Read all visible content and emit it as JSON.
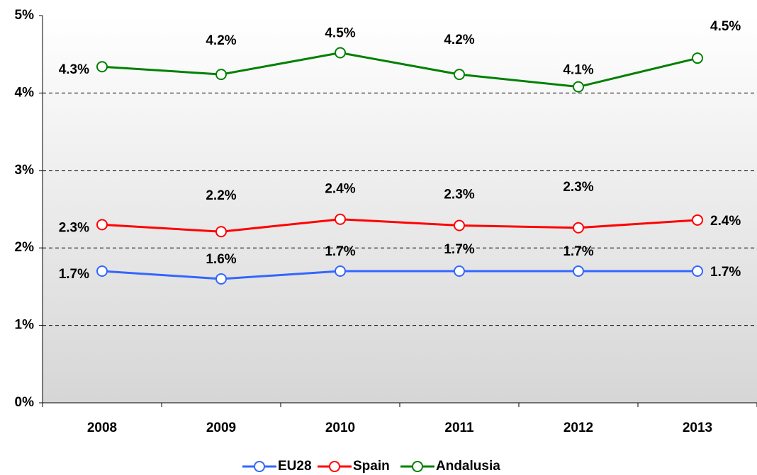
{
  "chart_data": {
    "type": "line",
    "categories": [
      "2008",
      "2009",
      "2010",
      "2011",
      "2012",
      "2013"
    ],
    "series": [
      {
        "name": "EU28",
        "color": "#3366ff",
        "values": [
          1.7,
          1.6,
          1.7,
          1.7,
          1.7,
          1.7
        ],
        "value_labels": [
          "1.7%",
          "1.6%",
          "1.7%",
          "1.7%",
          "1.7%",
          "1.7%"
        ]
      },
      {
        "name": "Spain",
        "color": "#ff0000",
        "values": [
          2.3,
          2.21,
          2.37,
          2.29,
          2.26,
          2.36
        ],
        "value_labels": [
          "2.3%",
          "2.2%",
          "2.4%",
          "2.3%",
          "2.3%",
          "2.4%"
        ]
      },
      {
        "name": "Andalusia",
        "color": "#008000",
        "values": [
          4.34,
          4.24,
          4.52,
          4.24,
          4.08,
          4.45
        ],
        "value_labels": [
          "4.3%",
          "4.2%",
          "4.5%",
          "4.2%",
          "4.1%",
          "4.5%"
        ]
      }
    ],
    "ylim": [
      0,
      5
    ],
    "yticks": [
      {
        "value": 0,
        "label": "0%"
      },
      {
        "value": 1,
        "label": "1%"
      },
      {
        "value": 2,
        "label": "2%"
      },
      {
        "value": 3,
        "label": "3%"
      },
      {
        "value": 4,
        "label": "4%"
      },
      {
        "value": 5,
        "label": "5%"
      }
    ],
    "grid": true,
    "legend": "bottom"
  }
}
